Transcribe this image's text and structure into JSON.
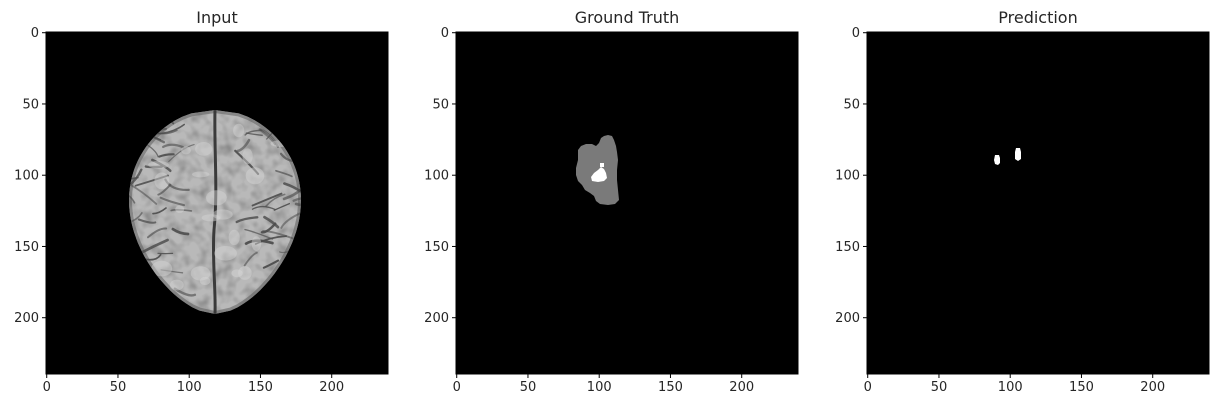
{
  "figure": {
    "panels": [
      {
        "id": "input",
        "title": "Input",
        "xticks": [
          "0",
          "50",
          "100",
          "150",
          "200"
        ],
        "yticks": [
          "0",
          "50",
          "100",
          "150",
          "200"
        ],
        "image_content": "brain-axial-mri-slice"
      },
      {
        "id": "ground-truth",
        "title": "Ground Truth",
        "xticks": [
          "0",
          "50",
          "100",
          "150",
          "200"
        ],
        "yticks": [
          "0",
          "50",
          "100",
          "150",
          "200"
        ],
        "image_content": "tumor-segmentation-mask"
      },
      {
        "id": "prediction",
        "title": "Prediction",
        "xticks": [
          "0",
          "50",
          "100",
          "150",
          "200"
        ],
        "yticks": [
          "0",
          "50",
          "100",
          "150",
          "200"
        ],
        "image_content": "predicted-segmentation-mask"
      }
    ],
    "axis_range": [
      0,
      240
    ],
    "colors": {
      "background": "#000000",
      "tumor_region": "#7a7a7a",
      "tumor_core": "#ffffff",
      "text": "#262626"
    }
  }
}
